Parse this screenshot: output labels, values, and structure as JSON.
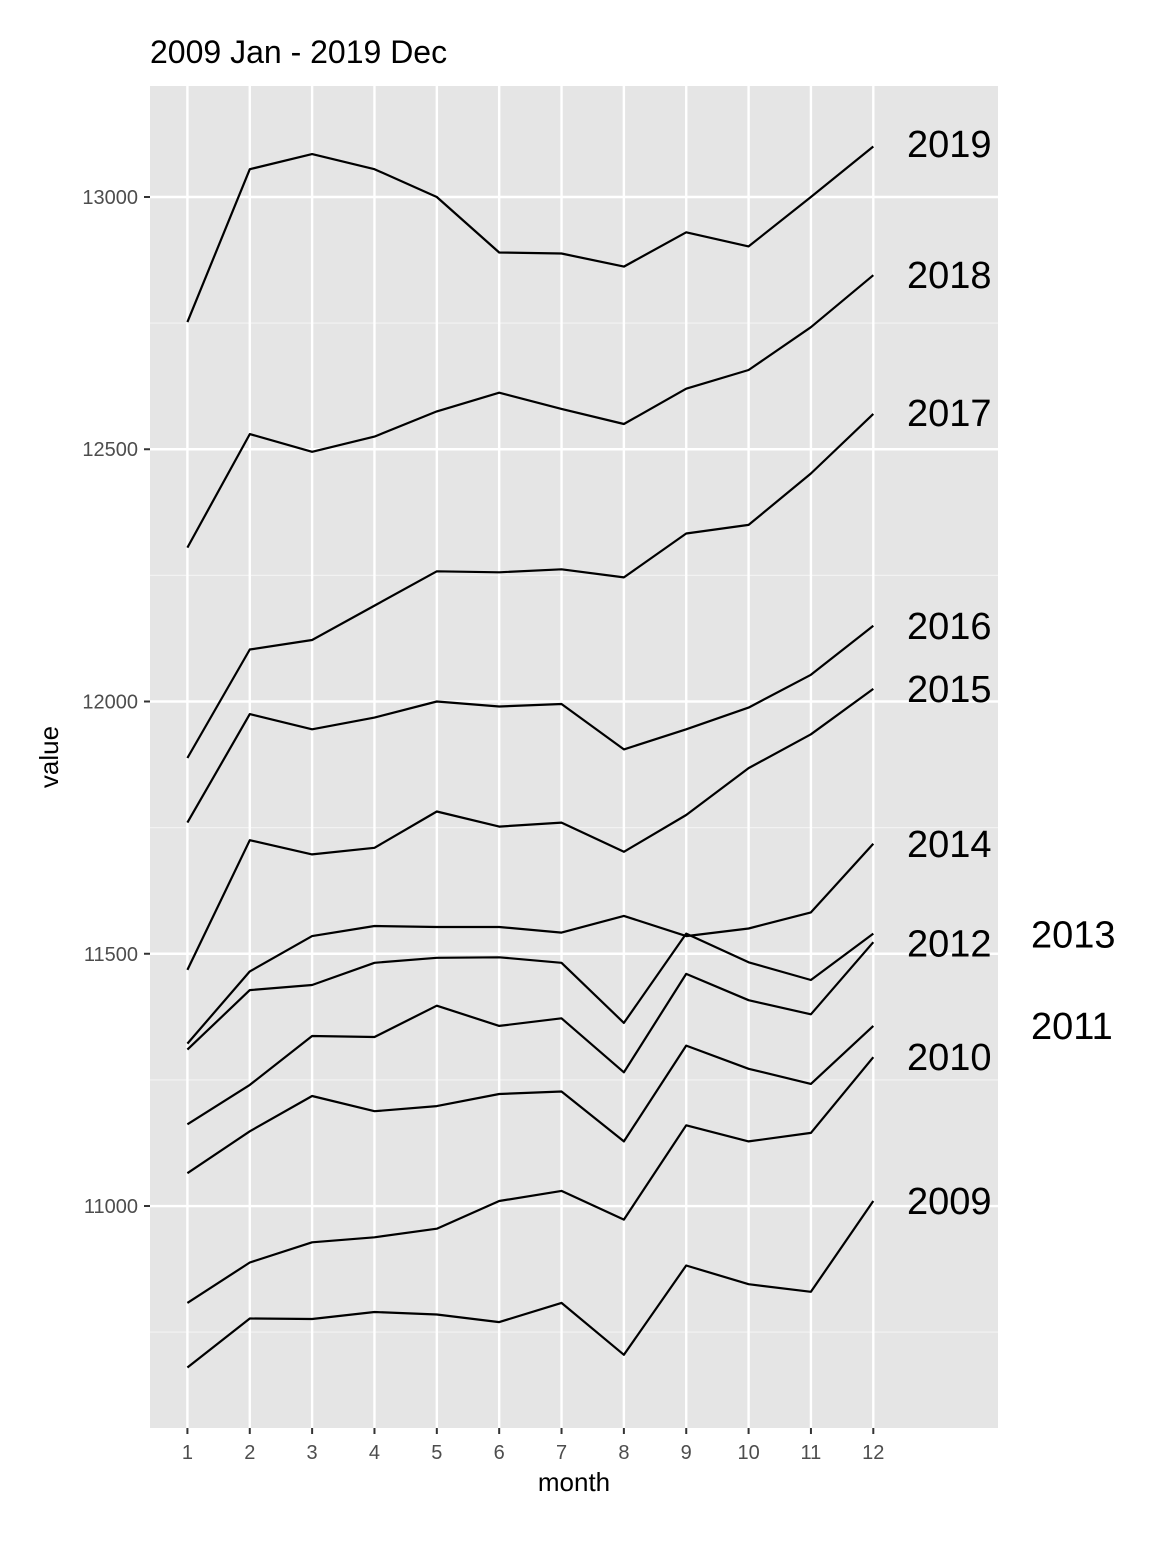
{
  "chart_data": {
    "type": "line",
    "title": "2009 Jan - 2019 Dec",
    "xlabel": "month",
    "ylabel": "value",
    "x": [
      1,
      2,
      3,
      4,
      5,
      6,
      7,
      8,
      9,
      10,
      11,
      12
    ],
    "x_ticks": [
      "1",
      "2",
      "3",
      "4",
      "5",
      "6",
      "7",
      "8",
      "9",
      "10",
      "11",
      "12"
    ],
    "y_ticks": [
      "11000",
      "11500",
      "12000",
      "12500",
      "13000"
    ],
    "y_tick_values": [
      11000,
      11500,
      12000,
      12500,
      13000
    ],
    "xlim": [
      0.4,
      14.0
    ],
    "ylim": [
      10560,
      13220
    ],
    "grid": true,
    "background": "#e5e5e5",
    "line_color": "#000000",
    "series": [
      {
        "name": "2009",
        "values": [
          10680,
          10777,
          10776,
          10790,
          10785,
          10770,
          10808,
          10705,
          10882,
          10845,
          10830,
          11010
        ]
      },
      {
        "name": "2010",
        "values": [
          10808,
          10888,
          10928,
          10938,
          10955,
          11010,
          11030,
          10973,
          11160,
          11128,
          11145,
          11295
        ]
      },
      {
        "name": "2011",
        "values": [
          11065,
          11148,
          11218,
          11188,
          11198,
          11222,
          11227,
          11128,
          11318,
          11272,
          11242,
          11357
        ]
      },
      {
        "name": "2012",
        "values": [
          11162,
          11240,
          11337,
          11335,
          11397,
          11357,
          11372,
          11265,
          11460,
          11408,
          11380,
          11523
        ]
      },
      {
        "name": "2013",
        "values": [
          11310,
          11428,
          11438,
          11482,
          11492,
          11493,
          11482,
          11363,
          11540,
          11483,
          11448,
          11540
        ]
      },
      {
        "name": "2014",
        "values": [
          11322,
          11465,
          11535,
          11555,
          11553,
          11553,
          11542,
          11575,
          11535,
          11550,
          11582,
          11718
        ]
      },
      {
        "name": "2015",
        "values": [
          11468,
          11725,
          11697,
          11710,
          11782,
          11752,
          11760,
          11702,
          11775,
          11868,
          11935,
          12025
        ]
      },
      {
        "name": "2016",
        "values": [
          11760,
          11975,
          11945,
          11968,
          12000,
          11990,
          11995,
          11905,
          11945,
          11988,
          12053,
          12150
        ]
      },
      {
        "name": "2017",
        "values": [
          11888,
          12103,
          12122,
          12190,
          12258,
          12256,
          12262,
          12246,
          12333,
          12350,
          12452,
          12570
        ]
      },
      {
        "name": "2018",
        "values": [
          12305,
          12530,
          12495,
          12525,
          12575,
          12612,
          12580,
          12550,
          12620,
          12657,
          12742,
          12845
        ]
      },
      {
        "name": "2019",
        "values": [
          12752,
          13055,
          13085,
          13055,
          13000,
          12890,
          12888,
          12862,
          12930,
          12902,
          13000,
          13100
        ]
      }
    ],
    "end_labels": [
      {
        "name": "2019",
        "text": "2019",
        "y": 13105,
        "column": "inner"
      },
      {
        "name": "2018",
        "text": "2018",
        "y": 12845,
        "column": "inner"
      },
      {
        "name": "2017",
        "text": "2017",
        "y": 12572,
        "column": "inner"
      },
      {
        "name": "2016",
        "text": "2016",
        "y": 12150,
        "column": "inner"
      },
      {
        "name": "2015",
        "text": "2015",
        "y": 12025,
        "column": "inner"
      },
      {
        "name": "2014",
        "text": "2014",
        "y": 11718,
        "column": "inner"
      },
      {
        "name": "2013",
        "text": "2013",
        "y": 11538,
        "column": "outer"
      },
      {
        "name": "2012",
        "text": "2012",
        "y": 11520,
        "column": "inner"
      },
      {
        "name": "2011",
        "text": "2011",
        "y": 11357,
        "column": "outer"
      },
      {
        "name": "2010",
        "text": "2010",
        "y": 11295,
        "column": "inner"
      },
      {
        "name": "2009",
        "text": "2009",
        "y": 11010,
        "column": "inner"
      }
    ]
  }
}
